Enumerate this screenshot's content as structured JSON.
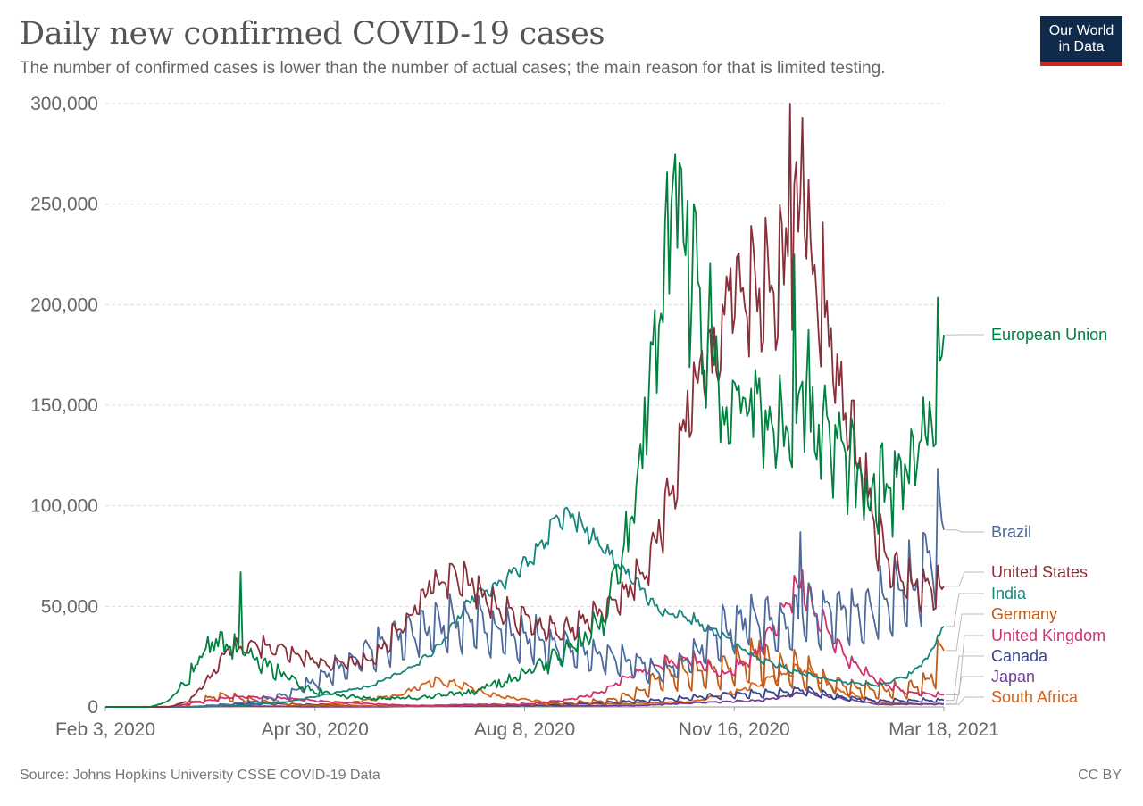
{
  "header": {
    "title": "Daily new confirmed COVID-19 cases",
    "subtitle": "The number of confirmed cases is lower than the number of actual cases; the main reason for that is limited testing."
  },
  "logo": {
    "line1": "Our World",
    "line2": "in Data"
  },
  "footer": {
    "source": "Source: Johns Hopkins University CSSE COVID-19 Data",
    "license": "CC BY"
  },
  "chart_data": {
    "type": "line",
    "title": "Daily new confirmed COVID-19 cases",
    "xlabel": "",
    "ylabel": "",
    "x_range": [
      "2020-02-03",
      "2021-03-18"
    ],
    "x_ticks": [
      "Feb 3, 2020",
      "Apr 30, 2020",
      "Aug 8, 2020",
      "Nov 16, 2020",
      "Mar 18, 2021"
    ],
    "ylim": [
      0,
      300000
    ],
    "y_ticks": [
      0,
      50000,
      100000,
      150000,
      200000,
      250000,
      300000
    ],
    "y_tick_labels": [
      "0",
      "50,000",
      "100,000",
      "150,000",
      "200,000",
      "250,000",
      "300,000"
    ],
    "grid": true,
    "series": [
      {
        "name": "European Union",
        "color": "#00813f",
        "noise": 0.18,
        "weekly": 0.12,
        "last": 185000,
        "points": [
          [
            "2020-02-03",
            0
          ],
          [
            "2020-02-25",
            0
          ],
          [
            "2020-03-05",
            3000
          ],
          [
            "2020-03-15",
            15000
          ],
          [
            "2020-03-22",
            28000
          ],
          [
            "2020-03-28",
            32000
          ],
          [
            "2020-04-03",
            30000
          ],
          [
            "2020-04-10",
            28000
          ],
          [
            "2020-04-20",
            22000
          ],
          [
            "2020-05-01",
            14000
          ],
          [
            "2020-05-15",
            8000
          ],
          [
            "2020-06-01",
            5000
          ],
          [
            "2020-06-20",
            4000
          ],
          [
            "2020-07-10",
            5000
          ],
          [
            "2020-08-01",
            8000
          ],
          [
            "2020-08-20",
            14000
          ],
          [
            "2020-09-10",
            25000
          ],
          [
            "2020-09-25",
            35000
          ],
          [
            "2020-10-05",
            50000
          ],
          [
            "2020-10-15",
            90000
          ],
          [
            "2020-10-25",
            150000
          ],
          [
            "2020-11-01",
            200000
          ],
          [
            "2020-11-05",
            230000
          ],
          [
            "2020-11-10",
            245000
          ],
          [
            "2020-11-18",
            210000
          ],
          [
            "2020-12-01",
            160000
          ],
          [
            "2020-12-15",
            150000
          ],
          [
            "2020-12-28",
            130000
          ],
          [
            "2021-01-08",
            160000
          ],
          [
            "2021-01-20",
            145000
          ],
          [
            "2021-02-01",
            120000
          ],
          [
            "2021-02-10",
            100000
          ],
          [
            "2021-02-20",
            110000
          ],
          [
            "2021-03-05",
            125000
          ],
          [
            "2021-03-12",
            140000
          ],
          [
            "2021-03-18",
            185000
          ]
        ],
        "spikes": [
          [
            "2020-04-09",
            67000
          ],
          [
            "2020-11-07",
            275000
          ],
          [
            "2021-01-04",
            225000
          ]
        ]
      },
      {
        "name": "Brazil",
        "color": "#4c6a9c",
        "noise": 0.1,
        "weekly": 0.35,
        "last": 88000,
        "points": [
          [
            "2020-02-03",
            0
          ],
          [
            "2020-03-15",
            0
          ],
          [
            "2020-04-01",
            1000
          ],
          [
            "2020-04-15",
            2500
          ],
          [
            "2020-05-01",
            6000
          ],
          [
            "2020-05-15",
            13000
          ],
          [
            "2020-06-01",
            22000
          ],
          [
            "2020-06-15",
            30000
          ],
          [
            "2020-07-01",
            38000
          ],
          [
            "2020-07-20",
            40000
          ],
          [
            "2020-08-01",
            42000
          ],
          [
            "2020-08-20",
            36000
          ],
          [
            "2020-09-05",
            32000
          ],
          [
            "2020-09-20",
            28000
          ],
          [
            "2020-10-01",
            26000
          ],
          [
            "2020-10-20",
            22000
          ],
          [
            "2020-11-01",
            18000
          ],
          [
            "2020-11-15",
            25000
          ],
          [
            "2020-12-01",
            38000
          ],
          [
            "2020-12-15",
            45000
          ],
          [
            "2021-01-01",
            42000
          ],
          [
            "2021-01-15",
            48000
          ],
          [
            "2021-02-01",
            46000
          ],
          [
            "2021-02-20",
            50000
          ],
          [
            "2021-03-05",
            62000
          ],
          [
            "2021-03-18",
            88000
          ]
        ],
        "spikes": [
          [
            "2021-01-07",
            87000
          ]
        ]
      },
      {
        "name": "United States",
        "color": "#883039",
        "noise": 0.08,
        "weekly": 0.14,
        "last": 60000,
        "points": [
          [
            "2020-02-03",
            0
          ],
          [
            "2020-03-05",
            0
          ],
          [
            "2020-03-15",
            3000
          ],
          [
            "2020-03-25",
            15000
          ],
          [
            "2020-04-04",
            30000
          ],
          [
            "2020-04-15",
            30000
          ],
          [
            "2020-05-01",
            28000
          ],
          [
            "2020-05-20",
            22000
          ],
          [
            "2020-06-10",
            22000
          ],
          [
            "2020-06-25",
            38000
          ],
          [
            "2020-07-10",
            60000
          ],
          [
            "2020-07-20",
            68000
          ],
          [
            "2020-08-01",
            60000
          ],
          [
            "2020-08-20",
            45000
          ],
          [
            "2020-09-10",
            38000
          ],
          [
            "2020-09-25",
            42000
          ],
          [
            "2020-10-10",
            52000
          ],
          [
            "2020-10-25",
            72000
          ],
          [
            "2020-11-05",
            110000
          ],
          [
            "2020-11-15",
            160000
          ],
          [
            "2020-11-25",
            175000
          ],
          [
            "2020-12-05",
            210000
          ],
          [
            "2020-12-15",
            215000
          ],
          [
            "2020-12-25",
            200000
          ],
          [
            "2021-01-02",
            230000
          ],
          [
            "2021-01-08",
            255000
          ],
          [
            "2021-01-15",
            215000
          ],
          [
            "2021-01-25",
            165000
          ],
          [
            "2021-02-05",
            120000
          ],
          [
            "2021-02-15",
            80000
          ],
          [
            "2021-02-25",
            65000
          ],
          [
            "2021-03-08",
            58000
          ],
          [
            "2021-03-18",
            60000
          ]
        ],
        "spikes": [
          [
            "2021-01-02",
            300000
          ],
          [
            "2021-01-08",
            293000
          ]
        ]
      },
      {
        "name": "India",
        "color": "#18857e",
        "noise": 0.04,
        "weekly": 0.05,
        "last": 40000,
        "points": [
          [
            "2020-02-03",
            0
          ],
          [
            "2020-03-20",
            0
          ],
          [
            "2020-04-10",
            800
          ],
          [
            "2020-05-01",
            2500
          ],
          [
            "2020-05-20",
            6000
          ],
          [
            "2020-06-10",
            10000
          ],
          [
            "2020-06-30",
            19000
          ],
          [
            "2020-07-15",
            30000
          ],
          [
            "2020-07-31",
            55000
          ],
          [
            "2020-08-15",
            63000
          ],
          [
            "2020-08-31",
            75000
          ],
          [
            "2020-09-10",
            92000
          ],
          [
            "2020-09-17",
            96000
          ],
          [
            "2020-09-30",
            82000
          ],
          [
            "2020-10-15",
            66000
          ],
          [
            "2020-10-31",
            48000
          ],
          [
            "2020-11-15",
            44000
          ],
          [
            "2020-11-30",
            36000
          ],
          [
            "2020-12-15",
            25000
          ],
          [
            "2020-12-31",
            19000
          ],
          [
            "2021-01-15",
            15000
          ],
          [
            "2021-01-31",
            12000
          ],
          [
            "2021-02-15",
            11000
          ],
          [
            "2021-03-01",
            16000
          ],
          [
            "2021-03-10",
            24000
          ],
          [
            "2021-03-18",
            40000
          ]
        ],
        "spikes": []
      },
      {
        "name": "Germany",
        "color": "#c15b18",
        "noise": 0.12,
        "weekly": 0.5,
        "last": 28000,
        "points": [
          [
            "2020-02-03",
            0
          ],
          [
            "2020-03-05",
            0
          ],
          [
            "2020-03-15",
            1500
          ],
          [
            "2020-03-28",
            5500
          ],
          [
            "2020-04-05",
            5000
          ],
          [
            "2020-04-20",
            2500
          ],
          [
            "2020-05-10",
            800
          ],
          [
            "2020-06-10",
            400
          ],
          [
            "2020-07-10",
            400
          ],
          [
            "2020-08-01",
            900
          ],
          [
            "2020-08-20",
            1300
          ],
          [
            "2020-09-15",
            1800
          ],
          [
            "2020-10-05",
            3000
          ],
          [
            "2020-10-20",
            7000
          ],
          [
            "2020-11-01",
            16000
          ],
          [
            "2020-11-15",
            18000
          ],
          [
            "2020-12-01",
            18000
          ],
          [
            "2020-12-15",
            24000
          ],
          [
            "2020-12-28",
            20000
          ],
          [
            "2021-01-10",
            18000
          ],
          [
            "2021-01-25",
            11000
          ],
          [
            "2021-02-10",
            8000
          ],
          [
            "2021-02-28",
            9000
          ],
          [
            "2021-03-10",
            12000
          ],
          [
            "2021-03-18",
            28000
          ]
        ],
        "spikes": [
          [
            "2020-12-18",
            33000
          ]
        ]
      },
      {
        "name": "United Kingdom",
        "color": "#d02f6f",
        "noise": 0.06,
        "weekly": 0.15,
        "last": 6000,
        "points": [
          [
            "2020-02-03",
            0
          ],
          [
            "2020-03-05",
            0
          ],
          [
            "2020-03-20",
            2500
          ],
          [
            "2020-04-05",
            5000
          ],
          [
            "2020-04-20",
            5000
          ],
          [
            "2020-05-10",
            3500
          ],
          [
            "2020-06-01",
            2000
          ],
          [
            "2020-07-01",
            700
          ],
          [
            "2020-08-01",
            800
          ],
          [
            "2020-08-25",
            1200
          ],
          [
            "2020-09-15",
            3500
          ],
          [
            "2020-10-01",
            7000
          ],
          [
            "2020-10-15",
            15000
          ],
          [
            "2020-11-01",
            22000
          ],
          [
            "2020-11-15",
            24000
          ],
          [
            "2020-12-01",
            16000
          ],
          [
            "2020-12-15",
            25000
          ],
          [
            "2020-12-25",
            40000
          ],
          [
            "2021-01-01",
            55000
          ],
          [
            "2021-01-08",
            60000
          ],
          [
            "2021-01-20",
            38000
          ],
          [
            "2021-02-01",
            22000
          ],
          [
            "2021-02-15",
            12000
          ],
          [
            "2021-03-01",
            7000
          ],
          [
            "2021-03-18",
            6000
          ]
        ],
        "spikes": [
          [
            "2021-01-08",
            68000
          ]
        ]
      },
      {
        "name": "Canada",
        "color": "#38448e",
        "noise": 0.08,
        "weekly": 0.3,
        "last": 3300,
        "points": [
          [
            "2020-02-03",
            0
          ],
          [
            "2020-03-15",
            0
          ],
          [
            "2020-04-01",
            1200
          ],
          [
            "2020-04-20",
            1700
          ],
          [
            "2020-05-10",
            1200
          ],
          [
            "2020-06-15",
            350
          ],
          [
            "2020-08-01",
            400
          ],
          [
            "2020-09-01",
            600
          ],
          [
            "2020-10-01",
            2000
          ],
          [
            "2020-11-01",
            3500
          ],
          [
            "2020-12-01",
            6000
          ],
          [
            "2020-12-25",
            7000
          ],
          [
            "2021-01-08",
            8500
          ],
          [
            "2021-01-25",
            5000
          ],
          [
            "2021-02-15",
            3000
          ],
          [
            "2021-03-18",
            3300
          ]
        ],
        "spikes": []
      },
      {
        "name": "Japan",
        "color": "#6d3e91",
        "noise": 0.08,
        "weekly": 0.15,
        "last": 1500,
        "points": [
          [
            "2020-02-03",
            0
          ],
          [
            "2020-03-20",
            50
          ],
          [
            "2020-04-10",
            500
          ],
          [
            "2020-05-10",
            100
          ],
          [
            "2020-06-20",
            80
          ],
          [
            "2020-07-25",
            1100
          ],
          [
            "2020-08-10",
            1300
          ],
          [
            "2020-09-10",
            500
          ],
          [
            "2020-10-20",
            700
          ],
          [
            "2020-11-20",
            2200
          ],
          [
            "2020-12-20",
            3200
          ],
          [
            "2021-01-08",
            7000
          ],
          [
            "2021-01-25",
            4500
          ],
          [
            "2021-02-15",
            1200
          ],
          [
            "2021-03-18",
            1500
          ]
        ],
        "spikes": []
      },
      {
        "name": "South Africa",
        "color": "#d6631b",
        "noise": 0.1,
        "weekly": 0.15,
        "last": 1300,
        "points": [
          [
            "2020-02-03",
            0
          ],
          [
            "2020-03-25",
            200
          ],
          [
            "2020-05-01",
            300
          ],
          [
            "2020-06-01",
            2000
          ],
          [
            "2020-06-25",
            6000
          ],
          [
            "2020-07-10",
            12000
          ],
          [
            "2020-07-20",
            12500
          ],
          [
            "2020-08-10",
            6000
          ],
          [
            "2020-09-10",
            1500
          ],
          [
            "2020-10-10",
            1500
          ],
          [
            "2020-11-15",
            2500
          ],
          [
            "2020-12-15",
            10000
          ],
          [
            "2020-12-31",
            17000
          ],
          [
            "2021-01-10",
            19500
          ],
          [
            "2021-01-25",
            8000
          ],
          [
            "2021-02-15",
            2000
          ],
          [
            "2021-03-18",
            1300
          ]
        ],
        "spikes": [
          [
            "2020-07-22",
            13500
          ]
        ]
      }
    ]
  }
}
